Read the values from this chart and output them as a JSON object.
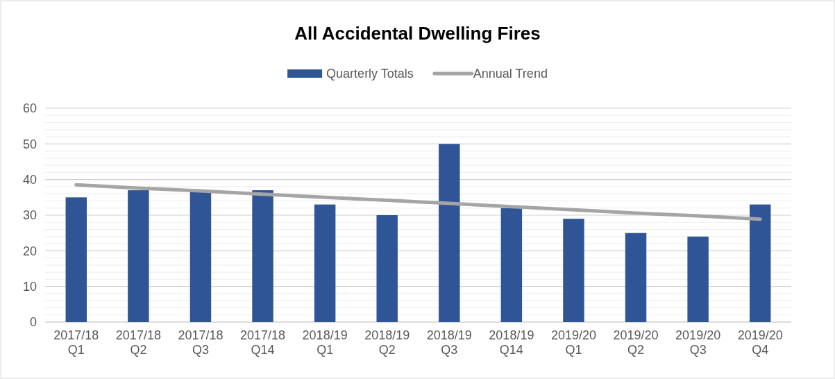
{
  "chart_data": {
    "type": "bar",
    "title": "All Accidental Dwelling Fires",
    "categories": [
      "2017/18 Q1",
      "2017/18 Q2",
      "2017/18 Q3",
      "2017/18 Q14",
      "2018/19 Q1",
      "2018/19 Q2",
      "2018/19 Q3",
      "2018/19 Q14",
      "2019/20 Q1",
      "2019/20 Q2",
      "2019/20 Q3",
      "2019/20 Q4"
    ],
    "series": [
      {
        "name": "Quarterly Totals",
        "color": "#2f5597",
        "values": [
          35,
          37,
          37,
          37,
          33,
          30,
          50,
          32,
          29,
          25,
          24,
          33
        ]
      },
      {
        "name": "Annual Trend",
        "type": "line",
        "color": "#a5a5a5",
        "values": [
          38.5,
          37.6,
          36.8,
          35.9,
          35.0,
          34.2,
          33.3,
          32.4,
          31.5,
          30.6,
          29.8,
          28.9
        ]
      }
    ],
    "ylim": [
      0,
      60
    ],
    "yticks": [
      0,
      {
        "value": 2,
        "label": null
      },
      {
        "value": 4,
        "label": null
      },
      {
        "value": 6,
        "label": null
      },
      {
        "value": 8,
        "label": null
      },
      10,
      {
        "value": 12,
        "label": null
      },
      {
        "value": 14,
        "label": null
      },
      {
        "value": 16,
        "label": null
      },
      {
        "value": 18,
        "label": null
      },
      20,
      {
        "value": 22,
        "label": null
      },
      {
        "value": 24,
        "label": null
      },
      {
        "value": 26,
        "label": null
      },
      {
        "value": 28,
        "label": null
      },
      30,
      {
        "value": 32,
        "label": null
      },
      {
        "value": 34,
        "label": null
      },
      {
        "value": 36,
        "label": null
      },
      {
        "value": 38,
        "label": null
      },
      40,
      {
        "value": 42,
        "label": null
      },
      {
        "value": 44,
        "label": null
      },
      {
        "value": 46,
        "label": null
      },
      {
        "value": 48,
        "label": null
      },
      50,
      {
        "value": 52,
        "label": null
      },
      {
        "value": 54,
        "label": null
      },
      {
        "value": 56,
        "label": null
      },
      {
        "value": 58,
        "label": null
      },
      60
    ],
    "grid": "y",
    "legend": "top"
  }
}
